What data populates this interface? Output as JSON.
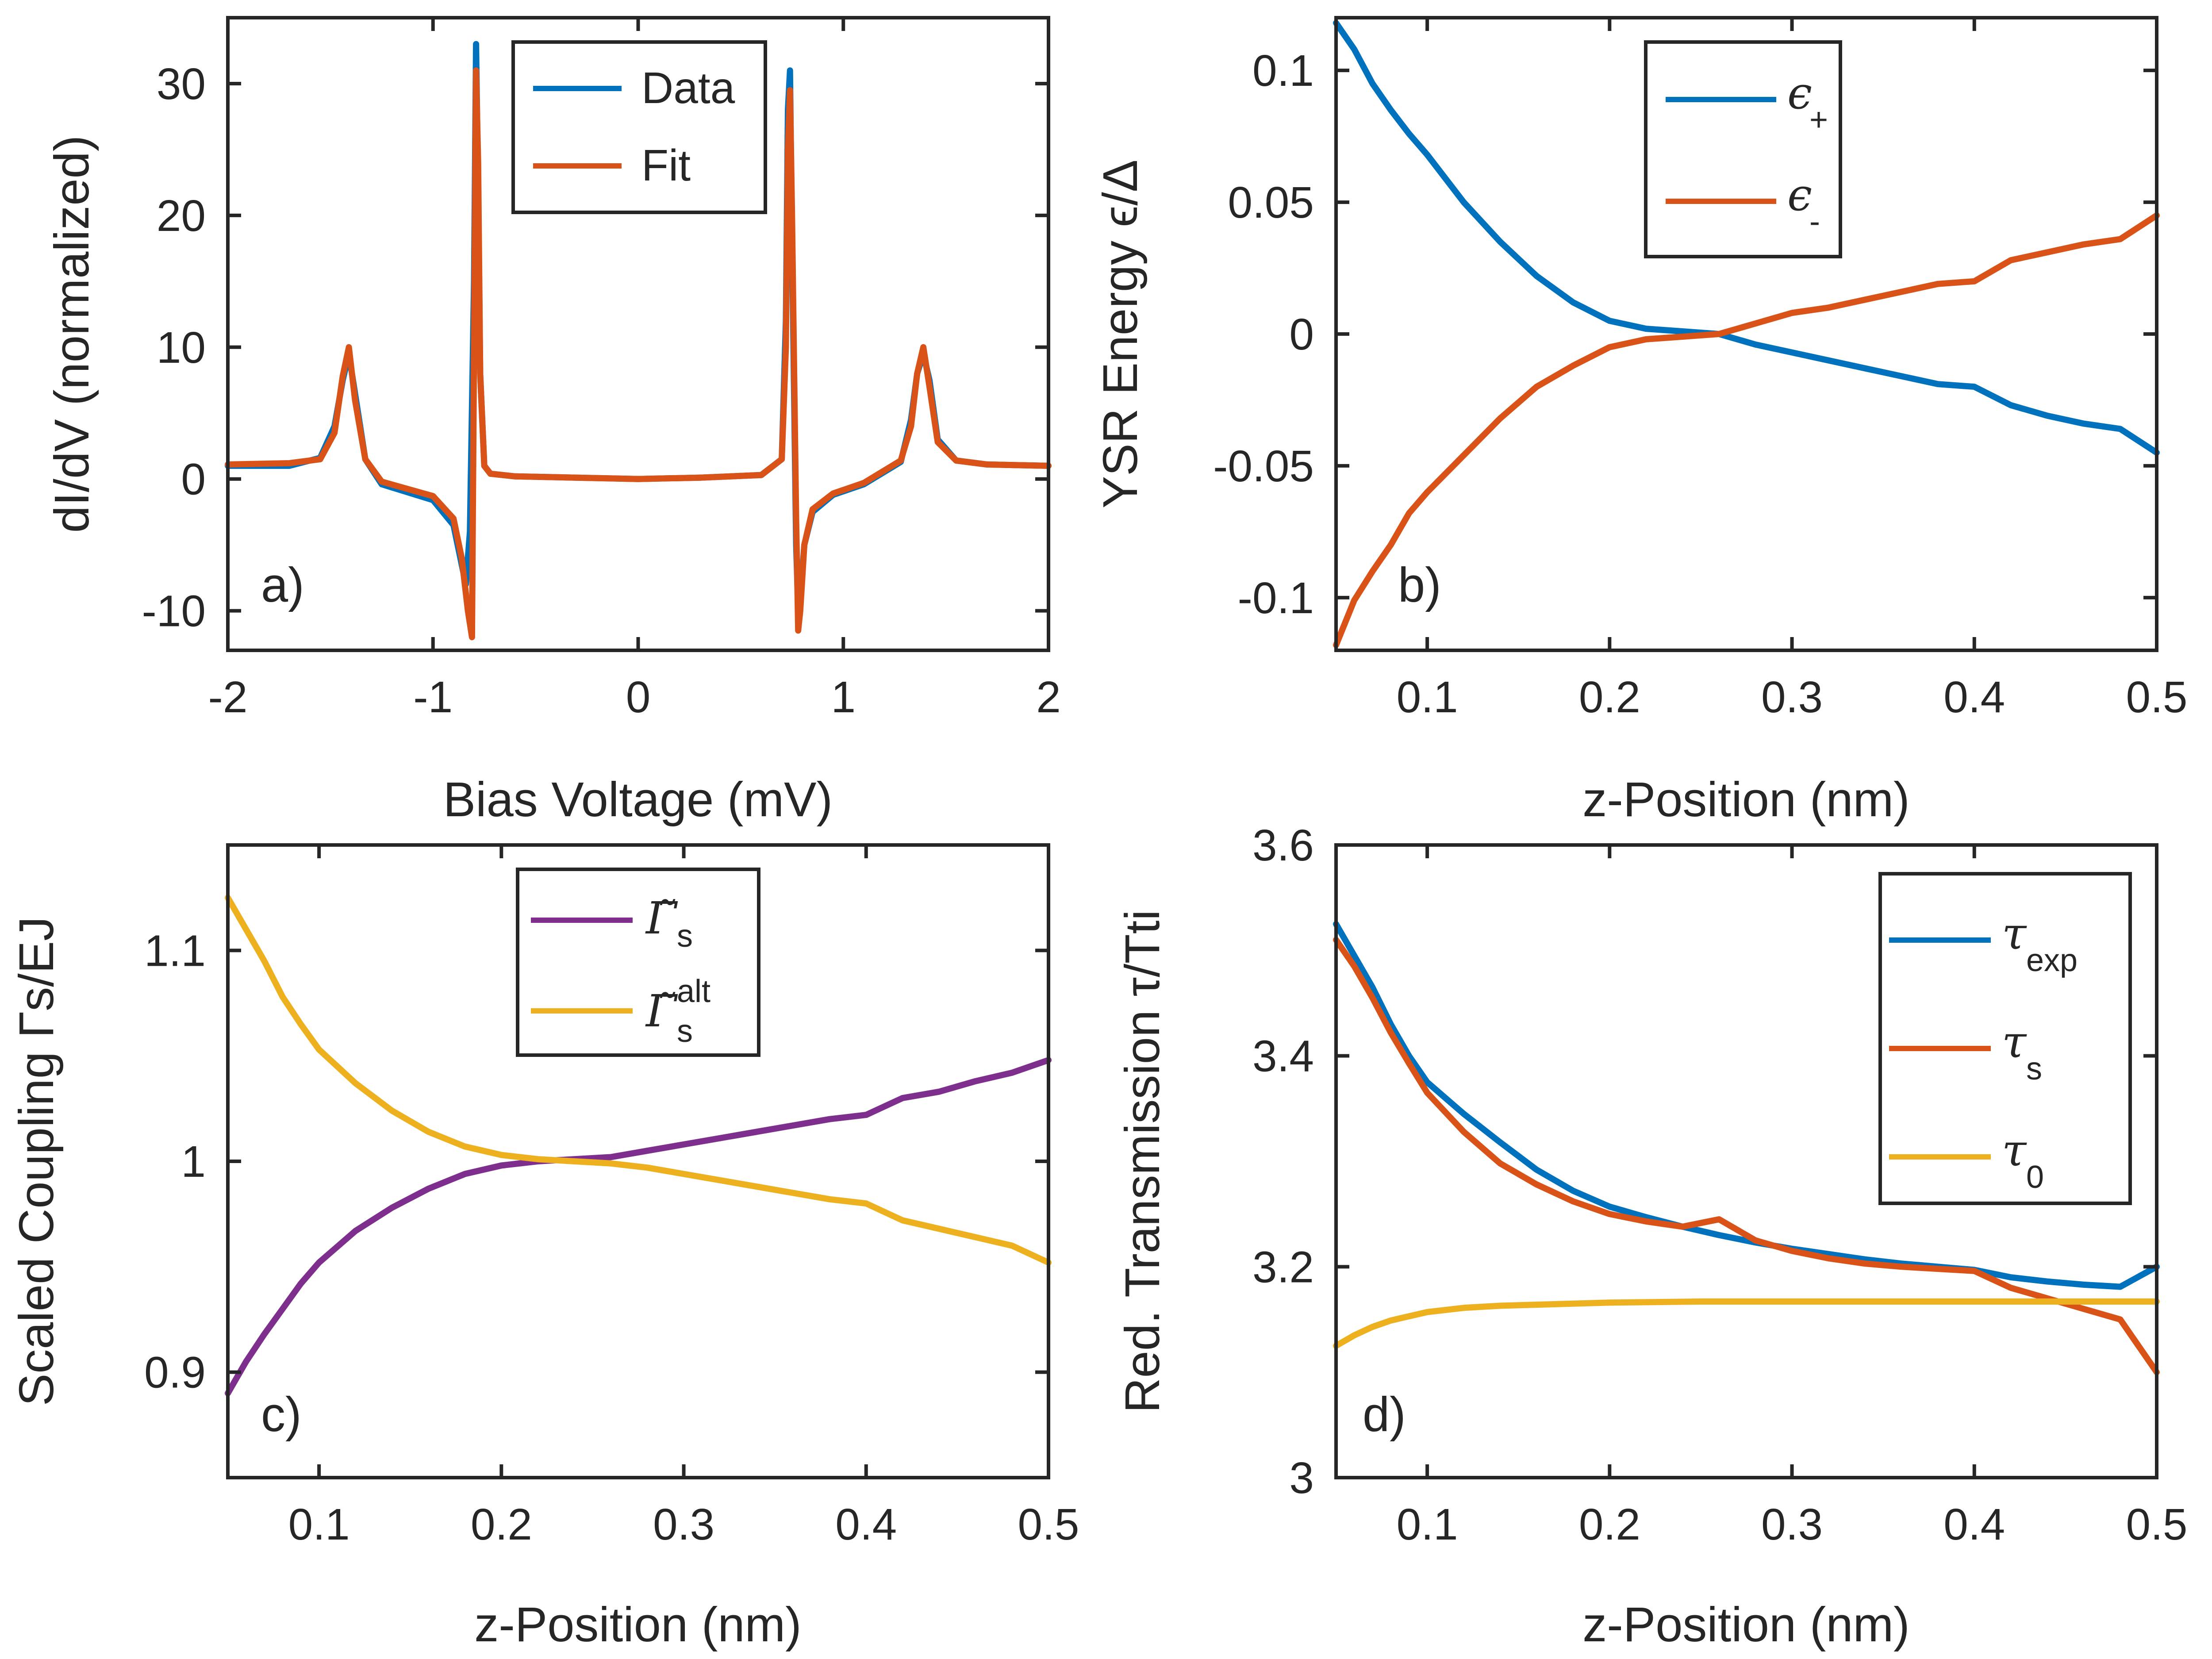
{
  "figure": {
    "panels": [
      {
        "id": "a",
        "panel_label": "a)",
        "xlabel": "Bias Voltage (mV)",
        "ylabel": "dI/dV (normalized)",
        "xlim": [
          -2,
          2
        ],
        "ylim": [
          -13,
          35
        ],
        "xticks": [
          -2,
          -1,
          0,
          1,
          2
        ],
        "xtick_labels": [
          "-2",
          "-1",
          "0",
          "1",
          "2"
        ],
        "yticks": [
          -10,
          0,
          10,
          20,
          30
        ],
        "ytick_labels": [
          "-10",
          "0",
          "10",
          "20",
          "30"
        ],
        "legend": {
          "position": "top-center",
          "entries": [
            {
              "label": "Data",
              "color": "#0072BD"
            },
            {
              "label": "Fit",
              "color": "#D95319"
            }
          ]
        }
      },
      {
        "id": "b",
        "panel_label": "b)",
        "xlabel": "z-Position (nm)",
        "ylabel": "YSR Energy ϵ/Δ",
        "xlim": [
          0.05,
          0.5
        ],
        "ylim": [
          -0.12,
          0.12
        ],
        "xticks": [
          0.1,
          0.2,
          0.3,
          0.4,
          0.5
        ],
        "xtick_labels": [
          "0.1",
          "0.2",
          "0.3",
          "0.4",
          "0.5"
        ],
        "yticks": [
          -0.1,
          -0.05,
          0,
          0.05,
          0.1
        ],
        "ytick_labels": [
          "-0.1",
          "-0.05",
          "0",
          "0.05",
          "0.1"
        ],
        "legend": {
          "position": "top-right",
          "entries": [
            {
              "label": "ϵ",
              "sub": "+",
              "color": "#0072BD"
            },
            {
              "label": "ϵ",
              "sub": "-",
              "color": "#D95319"
            }
          ]
        }
      },
      {
        "id": "c",
        "panel_label": "c)",
        "xlabel": "z-Position (nm)",
        "ylabel": "Scaled Coupling Γs/EJ",
        "xlim": [
          0.05,
          0.5
        ],
        "ylim": [
          0.85,
          1.15
        ],
        "xticks": [
          0.1,
          0.2,
          0.3,
          0.4,
          0.5
        ],
        "xtick_labels": [
          "0.1",
          "0.2",
          "0.3",
          "0.4",
          "0.5"
        ],
        "yticks": [
          0.9,
          1.0,
          1.1
        ],
        "ytick_labels": [
          "0.9",
          "1",
          "1.1"
        ],
        "legend": {
          "position": "top-center",
          "entries": [
            {
              "label": "Γ̃",
              "sub": "s",
              "color": "#7E2F8E"
            },
            {
              "label": "Γ̃",
              "sub": "s",
              "sup": "alt",
              "color": "#EDB120"
            }
          ]
        }
      },
      {
        "id": "d",
        "panel_label": "d)",
        "xlabel": "z-Position (nm)",
        "ylabel": "Red. Transmission τ/Tti",
        "xlim": [
          0.05,
          0.5
        ],
        "ylim": [
          3.0,
          3.6
        ],
        "xticks": [
          0.1,
          0.2,
          0.3,
          0.4,
          0.5
        ],
        "xtick_labels": [
          "0.1",
          "0.2",
          "0.3",
          "0.4",
          "0.5"
        ],
        "yticks": [
          3.0,
          3.2,
          3.4,
          3.6
        ],
        "ytick_labels": [
          "3",
          "3.2",
          "3.4",
          "3.6"
        ],
        "legend": {
          "position": "top-right",
          "entries": [
            {
              "label": "τ",
              "sub": "exp",
              "color": "#0072BD"
            },
            {
              "label": "τ",
              "sub": "s",
              "color": "#D95319"
            },
            {
              "label": "τ",
              "sub": "0",
              "color": "#EDB120"
            }
          ]
        }
      }
    ]
  },
  "chart_data": [
    {
      "type": "line",
      "panel": "a",
      "title": "",
      "xlabel": "Bias Voltage (mV)",
      "ylabel": "dI/dV (normalized)",
      "xlim": [
        -2,
        2
      ],
      "ylim": [
        -13,
        35
      ],
      "series": [
        {
          "name": "Data",
          "color": "#0072BD",
          "x": [
            -2.0,
            -1.7,
            -1.55,
            -1.48,
            -1.44,
            -1.41,
            -1.38,
            -1.33,
            -1.25,
            -1.0,
            -0.9,
            -0.86,
            -0.84,
            -0.82,
            -0.8,
            -0.79,
            -0.78,
            -0.77,
            -0.75,
            -0.72,
            -0.6,
            -0.3,
            0.0,
            0.3,
            0.6,
            0.7,
            0.72,
            0.73,
            0.74,
            0.75,
            0.77,
            0.78,
            0.79,
            0.81,
            0.85,
            0.95,
            1.1,
            1.28,
            1.33,
            1.36,
            1.39,
            1.42,
            1.46,
            1.55,
            1.7,
            2.0
          ],
          "y": [
            1.0,
            1.0,
            1.6,
            4.0,
            7.5,
            9.5,
            6.5,
            1.5,
            -0.4,
            -1.6,
            -3.5,
            -6.5,
            -8.0,
            -4.0,
            15.0,
            33.0,
            22.0,
            8.0,
            1.0,
            0.4,
            0.2,
            0.1,
            0.0,
            0.1,
            0.3,
            1.5,
            12.0,
            28.0,
            31.0,
            18.0,
            -5.0,
            -10.0,
            -9.0,
            -5.0,
            -2.5,
            -1.2,
            -0.4,
            1.3,
            4.5,
            8.0,
            9.5,
            7.5,
            3.0,
            1.4,
            1.1,
            1.0
          ]
        },
        {
          "name": "Fit",
          "color": "#D95319",
          "x": [
            -2.0,
            -1.7,
            -1.55,
            -1.48,
            -1.44,
            -1.41,
            -1.38,
            -1.33,
            -1.25,
            -1.0,
            -0.9,
            -0.86,
            -0.83,
            -0.81,
            -0.8,
            -0.79,
            -0.78,
            -0.77,
            -0.75,
            -0.72,
            -0.6,
            -0.3,
            0.0,
            0.3,
            0.6,
            0.7,
            0.72,
            0.73,
            0.74,
            0.75,
            0.77,
            0.78,
            0.79,
            0.81,
            0.85,
            0.95,
            1.1,
            1.28,
            1.33,
            1.36,
            1.39,
            1.42,
            1.46,
            1.55,
            1.7,
            2.0
          ],
          "y": [
            1.1,
            1.2,
            1.5,
            3.5,
            7.8,
            10.0,
            6.0,
            1.5,
            -0.2,
            -1.3,
            -3.0,
            -6.0,
            -10.0,
            -12.0,
            10.0,
            31.0,
            24.0,
            8.0,
            1.0,
            0.4,
            0.2,
            0.1,
            0.0,
            0.1,
            0.3,
            1.5,
            10.0,
            25.0,
            29.5,
            20.0,
            -3.0,
            -11.5,
            -10.0,
            -5.0,
            -2.3,
            -1.1,
            -0.3,
            1.4,
            4.0,
            8.0,
            10.0,
            7.0,
            2.8,
            1.4,
            1.1,
            1.0
          ]
        }
      ]
    },
    {
      "type": "line",
      "panel": "b",
      "title": "",
      "xlabel": "z-Position (nm)",
      "ylabel": "YSR Energy ϵ/Δ",
      "xlim": [
        0.05,
        0.5
      ],
      "ylim": [
        -0.12,
        0.12
      ],
      "series": [
        {
          "name": "ϵ+",
          "color": "#0072BD",
          "x": [
            0.05,
            0.06,
            0.07,
            0.08,
            0.09,
            0.1,
            0.12,
            0.14,
            0.16,
            0.18,
            0.2,
            0.22,
            0.24,
            0.26,
            0.28,
            0.3,
            0.32,
            0.34,
            0.36,
            0.38,
            0.4,
            0.42,
            0.44,
            0.46,
            0.48,
            0.5
          ],
          "y": [
            0.118,
            0.108,
            0.095,
            0.085,
            0.076,
            0.068,
            0.05,
            0.035,
            0.022,
            0.012,
            0.005,
            0.002,
            0.001,
            0.0,
            -0.004,
            -0.007,
            -0.01,
            -0.013,
            -0.016,
            -0.019,
            -0.02,
            -0.027,
            -0.031,
            -0.034,
            -0.036,
            -0.045
          ]
        },
        {
          "name": "ϵ-",
          "color": "#D95319",
          "x": [
            0.05,
            0.06,
            0.07,
            0.08,
            0.09,
            0.1,
            0.12,
            0.14,
            0.16,
            0.18,
            0.2,
            0.22,
            0.24,
            0.26,
            0.28,
            0.3,
            0.32,
            0.34,
            0.36,
            0.38,
            0.4,
            0.42,
            0.44,
            0.46,
            0.48,
            0.5
          ],
          "y": [
            -0.118,
            -0.101,
            -0.09,
            -0.08,
            -0.068,
            -0.06,
            -0.046,
            -0.032,
            -0.02,
            -0.012,
            -0.005,
            -0.002,
            -0.001,
            0.0,
            0.004,
            0.008,
            0.01,
            0.013,
            0.016,
            0.019,
            0.02,
            0.028,
            0.031,
            0.034,
            0.036,
            0.045
          ]
        }
      ]
    },
    {
      "type": "line",
      "panel": "c",
      "title": "",
      "xlabel": "z-Position (nm)",
      "ylabel": "Scaled Coupling Γs/EJ",
      "xlim": [
        0.05,
        0.5
      ],
      "ylim": [
        0.85,
        1.15
      ],
      "series": [
        {
          "name": "Γ̃s",
          "color": "#7E2F8E",
          "x": [
            0.05,
            0.06,
            0.07,
            0.08,
            0.09,
            0.1,
            0.12,
            0.14,
            0.16,
            0.18,
            0.2,
            0.22,
            0.24,
            0.26,
            0.28,
            0.3,
            0.32,
            0.34,
            0.36,
            0.38,
            0.4,
            0.42,
            0.44,
            0.46,
            0.48,
            0.5
          ],
          "y": [
            0.89,
            0.905,
            0.918,
            0.93,
            0.942,
            0.952,
            0.967,
            0.978,
            0.987,
            0.994,
            0.998,
            1.0,
            1.001,
            1.002,
            1.005,
            1.008,
            1.011,
            1.014,
            1.017,
            1.02,
            1.022,
            1.03,
            1.033,
            1.038,
            1.042,
            1.048
          ]
        },
        {
          "name": "Γ̃s alt",
          "color": "#EDB120",
          "x": [
            0.05,
            0.06,
            0.07,
            0.08,
            0.09,
            0.1,
            0.12,
            0.14,
            0.16,
            0.18,
            0.2,
            0.22,
            0.24,
            0.26,
            0.28,
            0.3,
            0.32,
            0.34,
            0.36,
            0.38,
            0.4,
            0.42,
            0.44,
            0.46,
            0.48,
            0.5
          ],
          "y": [
            1.125,
            1.11,
            1.095,
            1.078,
            1.065,
            1.053,
            1.037,
            1.024,
            1.014,
            1.007,
            1.003,
            1.001,
            1.0,
            0.999,
            0.997,
            0.994,
            0.991,
            0.988,
            0.985,
            0.982,
            0.98,
            0.972,
            0.968,
            0.964,
            0.96,
            0.952
          ]
        }
      ]
    },
    {
      "type": "line",
      "panel": "d",
      "title": "",
      "xlabel": "z-Position (nm)",
      "ylabel": "Red. Transmission τ/Tti",
      "xlim": [
        0.05,
        0.5
      ],
      "ylim": [
        3.0,
        3.6
      ],
      "series": [
        {
          "name": "τexp",
          "color": "#0072BD",
          "x": [
            0.05,
            0.06,
            0.07,
            0.08,
            0.09,
            0.1,
            0.12,
            0.14,
            0.16,
            0.18,
            0.2,
            0.22,
            0.24,
            0.26,
            0.28,
            0.3,
            0.32,
            0.34,
            0.36,
            0.38,
            0.4,
            0.42,
            0.44,
            0.46,
            0.48,
            0.5
          ],
          "y": [
            3.525,
            3.495,
            3.465,
            3.43,
            3.4,
            3.375,
            3.345,
            3.318,
            3.292,
            3.272,
            3.257,
            3.247,
            3.238,
            3.23,
            3.223,
            3.217,
            3.212,
            3.207,
            3.203,
            3.2,
            3.197,
            3.19,
            3.186,
            3.183,
            3.181,
            3.2
          ]
        },
        {
          "name": "τs",
          "color": "#D95319",
          "x": [
            0.05,
            0.06,
            0.07,
            0.08,
            0.09,
            0.1,
            0.12,
            0.14,
            0.16,
            0.18,
            0.2,
            0.22,
            0.24,
            0.26,
            0.28,
            0.3,
            0.32,
            0.34,
            0.36,
            0.38,
            0.4,
            0.42,
            0.44,
            0.46,
            0.48,
            0.5
          ],
          "y": [
            3.51,
            3.485,
            3.455,
            3.422,
            3.393,
            3.365,
            3.328,
            3.298,
            3.278,
            3.262,
            3.25,
            3.243,
            3.238,
            3.245,
            3.225,
            3.215,
            3.208,
            3.203,
            3.2,
            3.198,
            3.196,
            3.18,
            3.17,
            3.16,
            3.15,
            3.1
          ]
        },
        {
          "name": "τ0",
          "color": "#EDB120",
          "x": [
            0.05,
            0.06,
            0.07,
            0.08,
            0.09,
            0.1,
            0.12,
            0.14,
            0.16,
            0.18,
            0.2,
            0.25,
            0.3,
            0.35,
            0.4,
            0.45,
            0.5
          ],
          "y": [
            3.125,
            3.135,
            3.143,
            3.149,
            3.153,
            3.157,
            3.161,
            3.163,
            3.164,
            3.165,
            3.166,
            3.167,
            3.167,
            3.167,
            3.167,
            3.167,
            3.167
          ]
        }
      ]
    }
  ]
}
